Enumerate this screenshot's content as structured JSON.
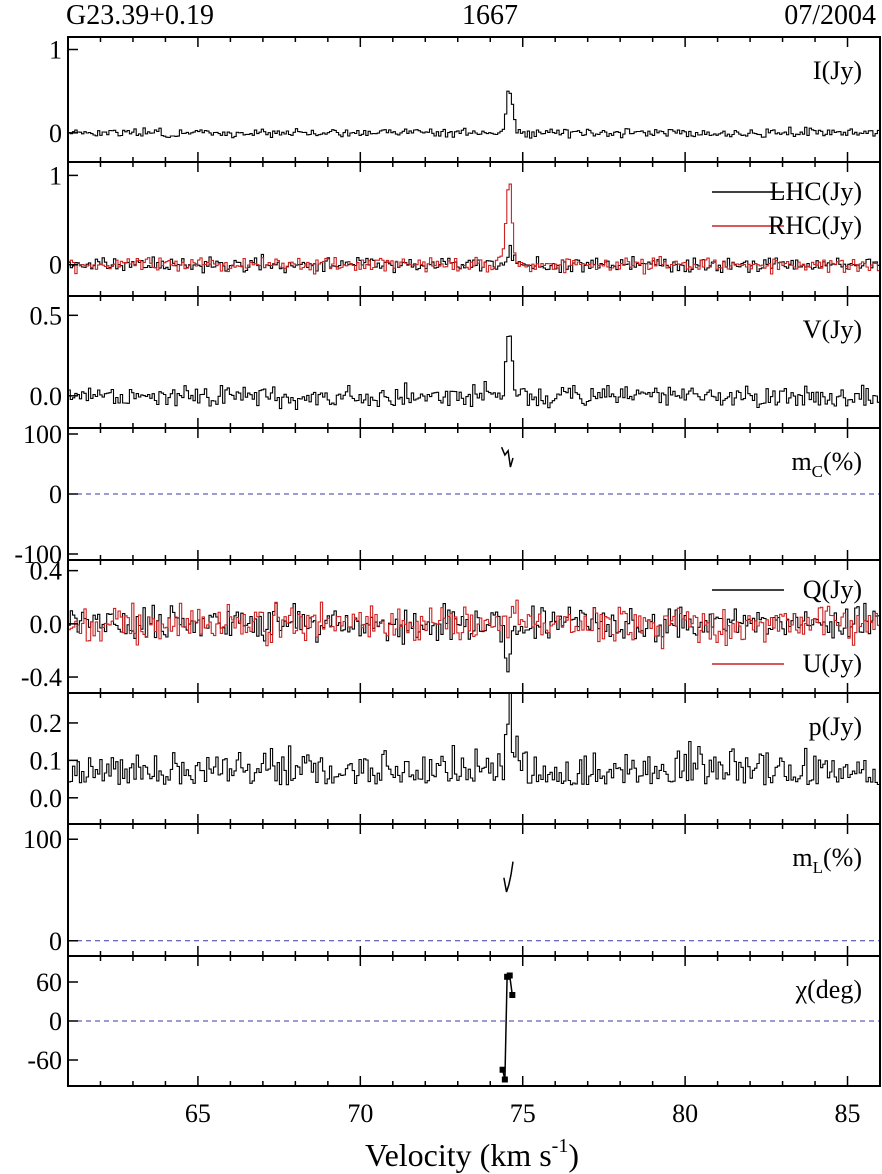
{
  "header": {
    "left": "G23.39+0.19",
    "center": "1667",
    "right": "07/2004"
  },
  "colors": {
    "black": "#000000",
    "red": "#cc2222",
    "ref_line": "#3a3aa0"
  },
  "chart_data": {
    "type": "line",
    "x_axis": {
      "label": "Velocity (km s",
      "label_sup": "-1",
      "label_end": ")",
      "range": [
        61,
        86
      ],
      "ticks": [
        65,
        70,
        75,
        80,
        85
      ],
      "tick_labels": [
        "65",
        "70",
        "75",
        "80",
        "85"
      ]
    },
    "panels": [
      {
        "id": "I",
        "label": "I(Jy)",
        "y_range": [
          -0.35,
          1.15
        ],
        "y_ticks": [
          0,
          1
        ],
        "y_tick_labels": [
          "0",
          "1"
        ],
        "series": [
          {
            "color": "#000000",
            "noise": 0.025,
            "seed": 3,
            "peaks": [
              [
                74.55,
                0.52,
                0.14
              ]
            ]
          }
        ]
      },
      {
        "id": "LHC-RHC",
        "label": "",
        "y_range": [
          -0.35,
          1.15
        ],
        "y_ticks": [
          0,
          1
        ],
        "y_tick_labels": [
          "0",
          "1"
        ],
        "legend": [
          "LHC(Jy)",
          "RHC(Jy)"
        ],
        "series": [
          {
            "name": "LHC(Jy)",
            "color": "#000000",
            "noise": 0.04,
            "seed": 11,
            "peaks": [
              [
                74.6,
                0.15,
                0.12
              ]
            ]
          },
          {
            "name": "RHC(Jy)",
            "color": "#cc2222",
            "noise": 0.04,
            "seed": 29,
            "peaks": [
              [
                74.55,
                0.92,
                0.13
              ]
            ]
          }
        ]
      },
      {
        "id": "V",
        "label": "V(Jy)",
        "y_range": [
          -0.2,
          0.62
        ],
        "y_ticks": [
          0.0,
          0.5
        ],
        "y_tick_labels": [
          "0.0",
          "0.5"
        ],
        "series": [
          {
            "color": "#000000",
            "noise": 0.035,
            "seed": 47,
            "peaks": [
              [
                74.55,
                0.4,
                0.13
              ]
            ]
          }
        ]
      },
      {
        "id": "mc",
        "label": "m",
        "label_sub": "C",
        "label_end": "(%)",
        "y_range": [
          -110,
          110
        ],
        "y_ticks": [
          -100,
          0,
          100
        ],
        "y_tick_labels": [
          "-100",
          "0",
          "100"
        ],
        "ref_zero": true,
        "curve": {
          "x": [
            74.35,
            74.45,
            74.55,
            74.62,
            74.7
          ],
          "y": [
            78,
            65,
            72,
            45,
            60
          ]
        }
      },
      {
        "id": "QU",
        "label": "",
        "y_range": [
          -0.52,
          0.48
        ],
        "y_ticks": [
          -0.4,
          0.0,
          0.4
        ],
        "y_tick_labels": [
          "-0.4",
          "0.0",
          "0.4"
        ],
        "legend": [
          "Q(Jy)",
          "U(Jy)"
        ],
        "series": [
          {
            "name": "Q(Jy)",
            "color": "#000000",
            "noise": 0.06,
            "seed": 61,
            "peaks": [
              [
                74.5,
                -0.28,
                0.13
              ]
            ]
          },
          {
            "name": "U(Jy)",
            "color": "#cc2222",
            "noise": 0.07,
            "seed": 83,
            "peaks": [
              [
                74.7,
                0.18,
                0.12
              ]
            ]
          }
        ]
      },
      {
        "id": "p",
        "label": "p(Jy)",
        "y_range": [
          -0.07,
          0.28
        ],
        "y_ticks": [
          0.0,
          0.1,
          0.2
        ],
        "y_tick_labels": [
          "0.0",
          "0.1",
          "0.2"
        ],
        "series": [
          {
            "color": "#000000",
            "noise": 0.045,
            "seed": 97,
            "offset": 0.035,
            "abs": true,
            "peaks": [
              [
                74.6,
                0.19,
                0.14
              ]
            ]
          }
        ]
      },
      {
        "id": "mL",
        "label": "m",
        "label_sub": "L",
        "label_end": "(%)",
        "y_range": [
          -15,
          115
        ],
        "y_ticks": [
          0,
          100
        ],
        "y_tick_labels": [
          "0",
          "100"
        ],
        "ref_zero": true,
        "curve": {
          "x": [
            74.42,
            74.5,
            74.57,
            74.64,
            74.7
          ],
          "y": [
            62,
            48,
            55,
            65,
            78
          ]
        }
      },
      {
        "id": "chi",
        "label": "χ(deg)",
        "y_range": [
          -100,
          100
        ],
        "y_ticks": [
          -60,
          0,
          60
        ],
        "y_tick_labels": [
          "-60",
          "0",
          "60"
        ],
        "ref_zero": true,
        "curve": {
          "x": [
            74.38,
            74.45,
            74.52,
            74.6,
            74.68
          ],
          "y": [
            -75,
            -90,
            68,
            70,
            40
          ]
        },
        "markers": true
      }
    ]
  }
}
